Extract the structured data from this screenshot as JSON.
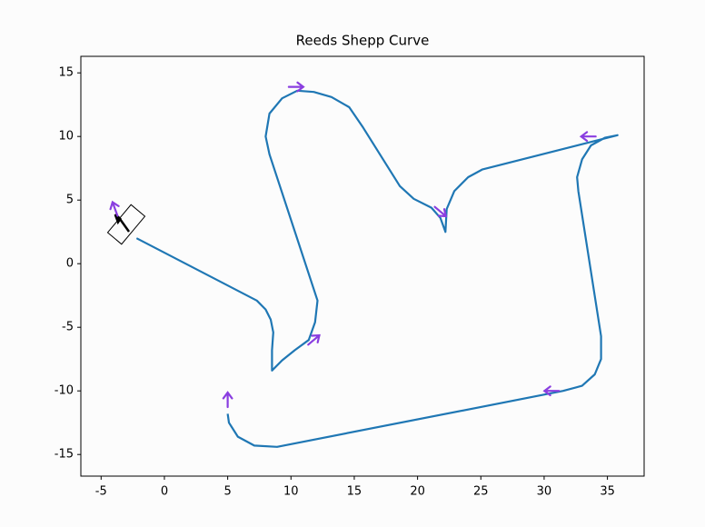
{
  "chart_data": {
    "type": "path",
    "title": "Reeds Shepp Curve",
    "x": [
      -2.2,
      7.3,
      8.0,
      8.4,
      8.6,
      8.5,
      8.5,
      9.3,
      10.3,
      11.4,
      11.9,
      12.1,
      8.3,
      8.0,
      8.3,
      9.3,
      10.5,
      11.8,
      13.2,
      14.6,
      15.7,
      18.6,
      19.7,
      21.1,
      21.8,
      22.2,
      22.3,
      22.9,
      24.0,
      25.1,
      35.8,
      34.8,
      33.7,
      33.0,
      32.6,
      32.7,
      34.5,
      34.5,
      34.0,
      33.0,
      31.5,
      8.9,
      7.1,
      5.8,
      5.1,
      5.0
    ],
    "values": [
      2.0,
      -2.9,
      -3.6,
      -4.4,
      -5.4,
      -6.8,
      -8.4,
      -7.6,
      -6.8,
      -6.0,
      -4.6,
      -2.9,
      8.6,
      10.0,
      11.8,
      13.0,
      13.6,
      13.5,
      13.1,
      12.3,
      10.7,
      6.1,
      5.1,
      4.4,
      3.6,
      2.5,
      4.3,
      5.7,
      6.8,
      7.4,
      10.1,
      9.9,
      9.3,
      8.2,
      6.8,
      5.7,
      -5.7,
      -7.5,
      -8.7,
      -9.6,
      -10.0,
      -14.4,
      -14.3,
      -13.6,
      -12.5,
      -11.8
    ],
    "color": "#1f77b4",
    "waypoints": {
      "x": [
        -3.9,
        10.4,
        11.8,
        21.8,
        33.5,
        30.6,
        5.0
      ],
      "y": [
        4.3,
        13.9,
        -6.0,
        4.1,
        10.0,
        -10.0,
        -10.7
      ],
      "heading": [
        110,
        0,
        40,
        -40,
        180,
        180,
        90
      ],
      "color": "#8a3ee0"
    },
    "xlim": [
      -6.6,
      37.9
    ],
    "ylim": [
      -16.7,
      16.3
    ],
    "xticks": [
      -5,
      0,
      5,
      10,
      15,
      20,
      25,
      30,
      35
    ],
    "yticks": [
      -15,
      -10,
      -5,
      0,
      5,
      10,
      15
    ]
  }
}
